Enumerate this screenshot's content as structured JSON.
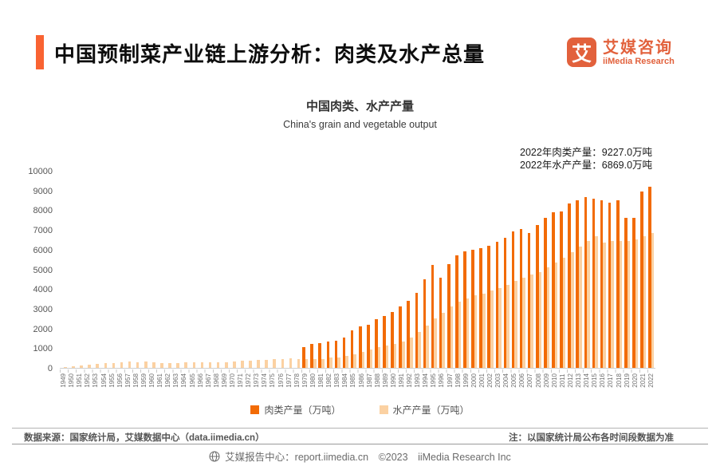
{
  "header": {
    "title": "中国预制菜产业链上游分析：肉类及水产总量",
    "logo": {
      "mark": "艾",
      "name_cn": "艾媒咨询",
      "name_en": "iiMedia Research"
    }
  },
  "chart": {
    "title": "中国肉类、水产产量",
    "subtitle": "China's grain and vegetable output",
    "annotation": {
      "line1": "2022年肉类产量：9227.0万吨",
      "line2": "2022年水产产量：6869.0万吨"
    }
  },
  "chart_data": {
    "type": "bar",
    "title": "中国肉类、水产产量",
    "subtitle": "China's grain and vegetable output",
    "xlabel": "",
    "ylabel": "",
    "ylim": [
      0,
      10000
    ],
    "yticks": [
      0,
      1000,
      2000,
      3000,
      4000,
      5000,
      6000,
      7000,
      8000,
      9000,
      10000
    ],
    "grid": false,
    "legend_position": "bottom",
    "categories": [
      1949,
      1950,
      1951,
      1952,
      1953,
      1954,
      1955,
      1956,
      1957,
      1958,
      1959,
      1960,
      1961,
      1962,
      1963,
      1964,
      1965,
      1966,
      1967,
      1968,
      1969,
      1970,
      1971,
      1972,
      1973,
      1974,
      1975,
      1976,
      1977,
      1978,
      1979,
      1980,
      1981,
      1982,
      1983,
      1984,
      1985,
      1986,
      1987,
      1988,
      1989,
      1990,
      1991,
      1992,
      1993,
      1994,
      1995,
      1996,
      1997,
      1998,
      1999,
      2000,
      2001,
      2002,
      2003,
      2004,
      2005,
      2006,
      2007,
      2008,
      2009,
      2010,
      2011,
      2012,
      2013,
      2014,
      2015,
      2016,
      2017,
      2018,
      2019,
      2020,
      2021,
      2022
    ],
    "series": [
      {
        "name": "肉类产量（万吨）",
        "color": "#F26B05",
        "values": [
          null,
          null,
          null,
          null,
          null,
          null,
          null,
          null,
          null,
          null,
          null,
          null,
          null,
          null,
          null,
          null,
          null,
          null,
          null,
          null,
          null,
          null,
          null,
          null,
          null,
          null,
          null,
          null,
          null,
          null,
          1062,
          1205,
          1261,
          1352,
          1402,
          1541,
          1927,
          2112,
          2200,
          2480,
          2629,
          2857,
          3144,
          3431,
          3842,
          4499,
          5260,
          4584,
          5269,
          5724,
          5949,
          6014,
          6106,
          6234,
          6443,
          6609,
          6939,
          7089,
          6866,
          7279,
          7650,
          7926,
          7965,
          8387,
          8535,
          8707,
          8625,
          8538,
          8431,
          8517,
          7649,
          7639,
          8990,
          9227
        ]
      },
      {
        "name": "水产产量（万吨）",
        "color": "#FBD1A2",
        "values": [
          45,
          91,
          133,
          167,
          190,
          229,
          252,
          265,
          312,
          281,
          309,
          304,
          231,
          228,
          255,
          280,
          298,
          302,
          305,
          285,
          289,
          318,
          350,
          384,
          393,
          426,
          441,
          448,
          470,
          466,
          431,
          450,
          461,
          516,
          546,
          619,
          705,
          824,
          955,
          1061,
          1152,
          1237,
          1351,
          1557,
          1823,
          2146,
          2517,
          2813,
          3123,
          3382,
          3545,
          3706,
          3796,
          3955,
          4078,
          4247,
          4420,
          4584,
          4748,
          4896,
          5116,
          5373,
          5603,
          5908,
          6172,
          6450,
          6700,
          6380,
          6445,
          6458,
          6480,
          6549,
          6693,
          6869
        ]
      }
    ]
  },
  "source": {
    "text": "数据来源：国家统计局，艾媒数据中心（data.iimedia.cn）",
    "note": "注：以国家统计局公布各时间段数据为准"
  },
  "footer": {
    "text": "艾媒报告中心：report.iimedia.cn　©2023　iiMedia Research Inc"
  },
  "colors": {
    "accent": "#F96332",
    "logo": "#E2613C",
    "meat_bar": "#F26B05",
    "aqua_bar": "#FBD1A2",
    "axis_text": "#6f6f6f",
    "footer_text": "#6b6b6b"
  }
}
